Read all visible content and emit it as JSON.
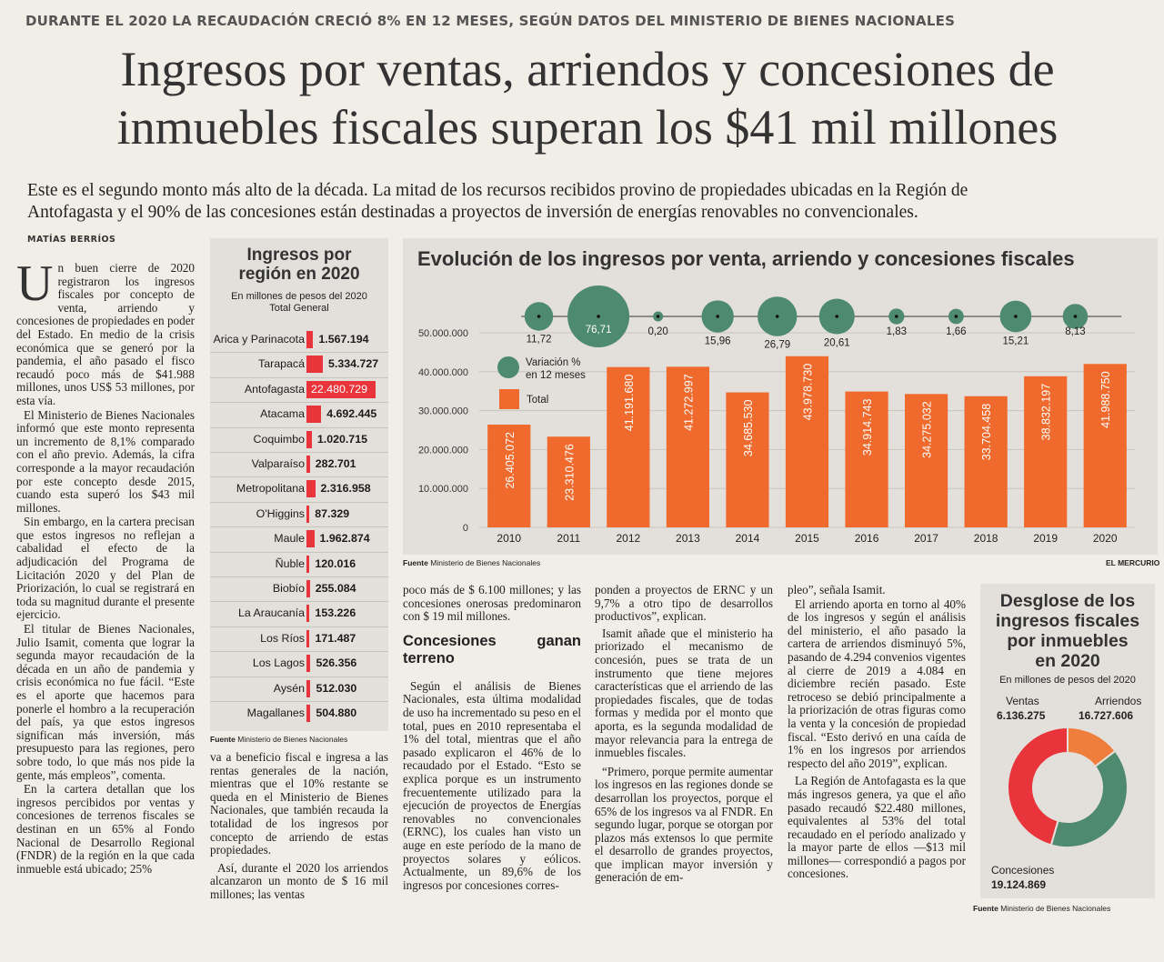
{
  "kicker": "DURANTE EL 2020 LA RECAUDACIÓN CRECIÓ 8% EN 12 MESES, SEGÚN DATOS DEL MINISTERIO DE BIENES NACIONALES",
  "headline": {
    "line1": "Ingresos por ventas, arriendos y concesiones de",
    "line2": "inmuebles fiscales superan los $41 mil millones"
  },
  "subhead": {
    "line1": "Este es el segundo monto más alto de la década. La mitad de los recursos recibidos provino de propiedades ubicadas en la Región de",
    "line2": "Antofagasta y el 90% de las concesiones están destinadas a proyectos de inversión de energías renovables no convencionales."
  },
  "byline": "MATÍAS BERRÍOS",
  "article": {
    "col1": {
      "dropcap": "U",
      "p1": "n buen cierre de 2020 registraron los ingresos fiscales por concepto de venta, arriendo y concesiones de propiedades en poder del Estado. En medio de la crisis económica que se generó por la pandemia, el año pasado el fisco recaudó poco más de $41.988 millones, unos US$ 53 millones, por esta vía.",
      "p2": "El Ministerio de Bienes Nacionales informó que este monto representa un incremento de 8,1% comparado con el año previo. Además, la cifra corresponde a la mayor recaudación por este concepto desde 2015, cuando esta superó los $43 mil millones.",
      "p3": "Sin embargo, en la cartera precisan que estos ingresos no reflejan a cabalidad el efecto de la adjudicación del Programa de Licitación 2020 y del Plan de Priorización, lo cual se registrará en toda su magnitud durante el presente ejercicio.",
      "p4": "El titular de Bienes Nacionales, Julio Isamit, comenta que lograr la segunda mayor recaudación de la década en un año de pandemia y crisis económica no fue fácil. “Este es el aporte que hacemos para ponerle el hombro a la recuperación del país, ya que estos ingresos significan más inversión, más presupuesto para las regiones, pero sobre todo, lo que más nos pide la gente, más empleos”, comenta.",
      "p5": "En la cartera detallan que los ingresos percibidos por ventas y concesiones de terrenos fiscales se destinan en un 65% al Fondo Nacional de Desarrollo Regional (FNDR) de la región en la que cada inmueble está ubicado; 25%"
    },
    "col2": {
      "p1": "va a beneficio fiscal e ingresa a las rentas generales de la nación, mientras que el 10% restante se queda en el Ministerio de Bienes Nacionales, que también recauda la totalidad de los ingresos por concepto de arriendo de estas propiedades.",
      "p2": "Así, durante el 2020 los arriendos alcanzaron un monto de $ 16 mil millones; las ventas"
    },
    "col3": {
      "p1": "poco más de $ 6.100 millones; y las concesiones onerosas predominaron con $ 19 mil millones.",
      "subtitle": "Concesiones ganan terreno",
      "p2": "Según el análisis de Bienes Nacionales, esta última modalidad de uso ha incrementado su peso en el total, pues en 2010 representaba el 1% del total, mientras que el año pasado explicaron el 46% de lo recaudado por el Estado. “Esto se explica porque es un instrumento frecuentemente utilizado para la ejecución de proyectos de Energías renovables no convencionales (ERNC), los cuales han visto un auge en este período de la mano de proyectos solares y eólicos. Actualmente, un 89,6% de los ingresos por concesiones corres-"
    },
    "col4": {
      "p1": "ponden a proyectos de ERNC y un 9,7% a otro tipo de desarrollos productivos”, explican.",
      "p2": "Isamit añade que el ministerio ha priorizado el mecanismo de concesión, pues se trata de un instrumento que tiene mejores características que el arriendo de las propiedades fiscales, que de todas formas y medida por el monto que aporta, es la segunda modalidad de mayor relevancia para la entrega de inmuebles fiscales.",
      "p3": "“Primero, porque permite aumentar los ingresos en las regiones donde se desarrollan los proyectos, porque el 65% de los ingresos va al FNDR. En segundo lugar, porque se otorgan por plazos más extensos lo que permite el desarrollo de grandes proyectos, que implican mayor inversión y generación de em-"
    },
    "col5": {
      "p1": "pleo”, señala Isamit.",
      "p2": "El arriendo aporta en torno al 40% de los ingresos y según el análisis del ministerio, el año pasado la cartera de arriendos disminuyó 5%, pasando de 4.294 convenios vigentes al cierre de 2019 a 4.084 en diciembre recién pasado. Este retroceso se debió principalmente a la priorización de otras figuras como la venta y la concesión de propiedad fiscal. “Esto derivó en una caída de 1% en los ingresos por arriendos respecto del año 2019”, explican.",
      "p3": "La Región de Antofagasta es la que más ingresos genera, ya que el año pasado recaudó $22.480 millones, equivalentes al 53% del total recaudado en el período analizado y la mayor parte de ellos —$13 mil millones— correspondió a pagos por concesiones."
    }
  },
  "region_box": {
    "title_line1": "Ingresos por",
    "title_line2": "región en 2020",
    "unit": "En millones de pesos del 2020",
    "header": "Total General",
    "fuente_label": "Fuente",
    "fuente_text": "Ministerio de Bienes Nacionales",
    "accent": "#e8343a",
    "rows": [
      {
        "name": "Arica y Parinacota",
        "value": "1.567.194",
        "num": 1567194
      },
      {
        "name": "Tarapacá",
        "value": "5.334.727",
        "num": 5334727
      },
      {
        "name": "Antofagasta",
        "value": "22.480.729",
        "num": 22480729
      },
      {
        "name": "Atacama",
        "value": "4.692.445",
        "num": 4692445
      },
      {
        "name": "Coquimbo",
        "value": "1.020.715",
        "num": 1020715
      },
      {
        "name": "Valparaíso",
        "value": "282.701",
        "num": 282701
      },
      {
        "name": "Metropolitana",
        "value": "2.316.958",
        "num": 2316958
      },
      {
        "name": "O'Higgins",
        "value": "87.329",
        "num": 87329
      },
      {
        "name": "Maule",
        "value": "1.962.874",
        "num": 1962874
      },
      {
        "name": "Ñuble",
        "value": "120.016",
        "num": 120016
      },
      {
        "name": "Biobío",
        "value": "255.084",
        "num": 255084
      },
      {
        "name": "La Araucanía",
        "value": "153.226",
        "num": 153226
      },
      {
        "name": "Los Ríos",
        "value": "171.487",
        "num": 171487
      },
      {
        "name": "Los Lagos",
        "value": "526.356",
        "num": 526356
      },
      {
        "name": "Aysén",
        "value": "512.030",
        "num": 512030
      },
      {
        "name": "Magallanes",
        "value": "504.880",
        "num": 504880
      }
    ]
  },
  "evolution_chart": {
    "title": "Evolución de los ingresos por venta, arriendo y concesiones fiscales",
    "fuente_label": "Fuente",
    "fuente_text": "Ministerio de Bienes Nacionales",
    "credit": "EL MERCURIO",
    "legend_variation": [
      "Variación %",
      "en 12 meses"
    ],
    "legend_total": "Total",
    "bar_color": "#ef6a2c",
    "bubble_color": "#4e8a6d"
  },
  "donut_box": {
    "title_line1": "Desglose de los",
    "title_line2": "ingresos fiscales",
    "title_line3": "por inmuebles",
    "title_line4": "en 2020",
    "unit": "En millones de pesos del 2020",
    "ventas_label": "Ventas",
    "ventas_value": "6.136.275",
    "arriendos_label": "Arriendos",
    "arriendos_value": "16.727.606",
    "concesiones_label": "Concesiones",
    "concesiones_value": "19.124.869",
    "fuente_label": "Fuente",
    "fuente_text": "Ministerio de Bienes Nacionales",
    "colors": {
      "ventas": "#ef7d3c",
      "arriendos": "#4e8a6d",
      "concesiones": "#e8343a"
    }
  },
  "chart_data": [
    {
      "type": "bar",
      "title": "Evolución de los ingresos por venta, arriendo y concesiones fiscales",
      "categories": [
        "2010",
        "2011",
        "2012",
        "2013",
        "2014",
        "2015",
        "2016",
        "2017",
        "2018",
        "2019",
        "2020"
      ],
      "values": [
        26405072,
        23310476,
        41191680,
        41272997,
        34685530,
        43978730,
        34914743,
        34275032,
        33704458,
        38832197,
        41988750
      ],
      "value_labels": [
        "26.405.072",
        "23.310.476",
        "41.191.680",
        "41.272.997",
        "34.685.530",
        "43.978.730",
        "34.914.743",
        "34.275.032",
        "33.704.458",
        "38.832.197",
        "41.988.750"
      ],
      "yticks": [
        0,
        10000000,
        20000000,
        30000000,
        40000000,
        50000000
      ],
      "ytick_labels": [
        "0",
        "10.000.000",
        "20.000.000",
        "30.000.000",
        "40.000.000",
        "50.000.000"
      ],
      "ylim": [
        0,
        50000000
      ],
      "variation": [
        11.72,
        76.71,
        0.2,
        15.96,
        26.79,
        20.61,
        1.83,
        1.66,
        15.21,
        8.13
      ],
      "variation_labels": [
        "11,72",
        "76,71",
        "0,20",
        "15,96",
        "26,79",
        "20,61",
        "1,83",
        "1,66",
        "15,21",
        "8,13"
      ],
      "variation_between": [
        [
          "2010",
          "2011"
        ],
        [
          "2011",
          "2012"
        ],
        [
          "2012",
          "2013"
        ],
        [
          "2013",
          "2014"
        ],
        [
          "2014",
          "2015"
        ],
        [
          "2015",
          "2016"
        ],
        [
          "2016",
          "2017"
        ],
        [
          "2017",
          "2018"
        ],
        [
          "2018",
          "2019"
        ],
        [
          "2019",
          "2020"
        ]
      ]
    },
    {
      "type": "pie",
      "title": "Desglose de los ingresos fiscales por inmuebles en 2020",
      "categories": [
        "Ventas",
        "Arriendos",
        "Concesiones"
      ],
      "values": [
        6136275,
        16727606,
        19124869
      ]
    }
  ]
}
